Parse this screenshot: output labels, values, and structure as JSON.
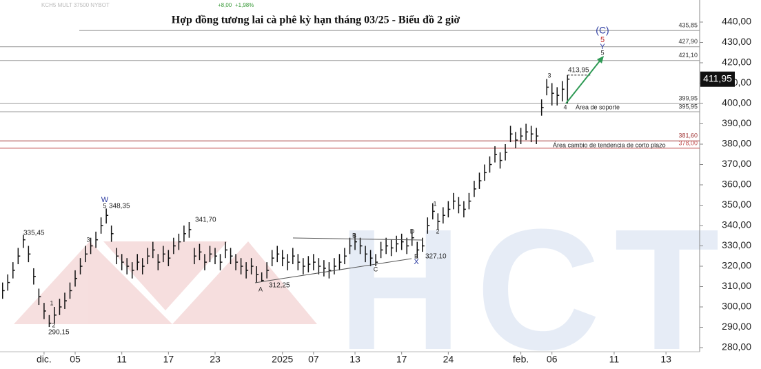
{
  "chart_data": {
    "type": "ohlc",
    "title": "Hợp đồng tương lai cà phê kỳ hạn tháng 03/25 - Biểu đồ 2 giờ",
    "header": [
      "KCH5 MULT 37500 NYBOT",
      "+8,00",
      "+1,98%"
    ],
    "watermark": "HCT",
    "color": "#111111",
    "categories": [
      null,
      null,
      null,
      null,
      null,
      null,
      null,
      null,
      "dic.",
      null,
      null,
      null,
      null,
      null,
      "05",
      null,
      null,
      null,
      null,
      null,
      null,
      null,
      null,
      "11",
      null,
      null,
      null,
      null,
      null,
      null,
      null,
      null,
      "17",
      null,
      null,
      null,
      null,
      null,
      null,
      null,
      null,
      "23",
      null,
      null,
      null,
      null,
      null,
      null,
      null,
      null,
      null,
      null,
      null,
      null,
      "2025",
      null,
      null,
      null,
      null,
      null,
      "07",
      null,
      null,
      null,
      null,
      null,
      null,
      null,
      "13",
      null,
      null,
      null,
      null,
      null,
      null,
      null,
      null,
      "17",
      null,
      null,
      null,
      null,
      null,
      null,
      null,
      null,
      "24",
      null,
      null,
      null,
      null,
      null,
      null,
      null,
      null,
      null,
      null,
      null,
      null,
      null,
      "feb.",
      null,
      null,
      null,
      null,
      null,
      "06",
      null,
      null,
      null,
      null,
      null,
      null,
      null,
      null,
      null,
      null,
      null,
      "11",
      null,
      null,
      null,
      null,
      null,
      null,
      null,
      null,
      null,
      "13",
      null,
      null,
      null,
      null,
      null,
      null
    ],
    "high": [
      312,
      316,
      322,
      329,
      335.45,
      330,
      319,
      309,
      302,
      296,
      300,
      304,
      307,
      312,
      318,
      324,
      330,
      334,
      337,
      344,
      348.35,
      340,
      329,
      326,
      324,
      322,
      326,
      324,
      329,
      332,
      326,
      330,
      328,
      334,
      336,
      340,
      341.7,
      329,
      331,
      326,
      330,
      329,
      326,
      332,
      329,
      326,
      324,
      322,
      324,
      320,
      317,
      322,
      328,
      330,
      328,
      326,
      329,
      326,
      324,
      325,
      326,
      324,
      323,
      322,
      324,
      326,
      329,
      334,
      336,
      334,
      330,
      328,
      326,
      332,
      334,
      333,
      335,
      336,
      334,
      338,
      332,
      334,
      344,
      351,
      346,
      349,
      352,
      356,
      354,
      352,
      356,
      362,
      366,
      370,
      374,
      379,
      376,
      380,
      389,
      386,
      388,
      390,
      389,
      388,
      402,
      412,
      410,
      408,
      411,
      413.95,
      null,
      null,
      null,
      null,
      null,
      null,
      null,
      null,
      null,
      null,
      null,
      null,
      null,
      null,
      null,
      null,
      null,
      null,
      null,
      null,
      null,
      null,
      null,
      null,
      null
    ],
    "low": [
      304,
      308,
      314,
      321,
      329,
      322,
      311,
      301,
      294,
      290.15,
      292,
      296,
      299,
      304,
      310,
      316,
      322,
      326,
      329,
      336,
      341,
      332,
      321,
      318,
      316,
      314,
      318,
      316,
      321,
      324,
      318,
      322,
      320,
      326,
      328,
      332,
      334,
      321,
      323,
      318,
      322,
      321,
      318,
      324,
      321,
      318,
      316,
      314,
      316,
      312,
      312.25,
      314,
      320,
      322,
      320,
      318,
      321,
      318,
      316,
      317,
      318,
      316,
      315,
      314,
      316,
      318,
      321,
      326,
      328,
      326,
      322,
      320,
      320,
      324,
      326,
      325,
      327,
      328,
      326,
      330,
      324,
      327.1,
      336,
      343,
      338,
      341,
      344,
      348,
      346,
      344,
      348,
      354,
      358,
      362,
      366,
      371,
      368,
      372,
      381,
      378,
      380,
      382,
      381,
      380,
      394,
      404,
      399,
      399,
      401,
      400,
      null,
      null,
      null,
      null,
      null,
      null,
      null,
      null,
      null,
      null,
      null,
      null,
      null,
      null,
      null,
      null,
      null,
      null,
      null,
      null,
      null,
      null,
      null,
      null,
      null
    ],
    "close": [
      308,
      312,
      318,
      325,
      333,
      326,
      315,
      305,
      298,
      292,
      296,
      300,
      303,
      308,
      314,
      320,
      326,
      330,
      333,
      340,
      345,
      336,
      325,
      322,
      320,
      318,
      322,
      320,
      325,
      328,
      322,
      326,
      324,
      330,
      332,
      336,
      338,
      325,
      327,
      322,
      326,
      325,
      322,
      328,
      325,
      322,
      320,
      318,
      320,
      316,
      313,
      318,
      324,
      326,
      324,
      322,
      325,
      322,
      320,
      321,
      322,
      320,
      319,
      318,
      320,
      322,
      325,
      330,
      332,
      330,
      326,
      324,
      322,
      328,
      330,
      329,
      331,
      332,
      330,
      334,
      328,
      330,
      340,
      347,
      342,
      345,
      348,
      352,
      350,
      348,
      352,
      358,
      362,
      366,
      370,
      375,
      372,
      376,
      385,
      382,
      384,
      386,
      385,
      384,
      398,
      408,
      405,
      404,
      407,
      411.95,
      null,
      null,
      null,
      null,
      null,
      null,
      null,
      null,
      null,
      null,
      null,
      null,
      null,
      null,
      null,
      null,
      null,
      null,
      null,
      null,
      null,
      null,
      null,
      null,
      null
    ],
    "last_price": {
      "value": 411.95,
      "label": "411,95"
    },
    "ylim": [
      277.97,
      450.85
    ],
    "yticks": [
      {
        "value": 280,
        "label": "280,00"
      },
      {
        "value": 290,
        "label": "290,00"
      },
      {
        "value": 300,
        "label": "300,00"
      },
      {
        "value": 310,
        "label": "310,00"
      },
      {
        "value": 320,
        "label": "320,00"
      },
      {
        "value": 330,
        "label": "330,00"
      },
      {
        "value": 340,
        "label": "340,00"
      },
      {
        "value": 350,
        "label": "350,00"
      },
      {
        "value": 360,
        "label": "360,00"
      },
      {
        "value": 370,
        "label": "370,00"
      },
      {
        "value": 380,
        "label": "380,00"
      },
      {
        "value": 390,
        "label": "390,00"
      },
      {
        "value": 400,
        "label": "400,00"
      },
      {
        "value": 410,
        "label": "410,00"
      },
      {
        "value": 420,
        "label": "420,00"
      },
      {
        "value": 430,
        "label": "430,00"
      },
      {
        "value": 440,
        "label": "440,00"
      }
    ],
    "levels": [
      {
        "value": 435.85,
        "label": "435,85",
        "color": "#9a9a9a"
      },
      {
        "value": 427.9,
        "label": "427,90",
        "color": "#9a9a9a"
      },
      {
        "value": 421.1,
        "label": "421,10",
        "color": "#9a9a9a"
      },
      {
        "value": 399.95,
        "label": "399,95",
        "color": "#9a9a9a"
      },
      {
        "value": 395.95,
        "label": "395,95",
        "color": "#9a9a9a"
      },
      {
        "value": 381.6,
        "label": "381,60",
        "color": "#a33a3a"
      },
      {
        "value": 378.0,
        "label": "378,00",
        "color": "#c05050"
      }
    ],
    "area_labels": [
      "Área de soporte",
      "Área cambio de tendencia de corto plazo"
    ],
    "price_labels": [
      "335,45",
      "290,15",
      "348,35",
      "341,70",
      "312,25",
      "327,10",
      "413,95"
    ],
    "wave_labels": [
      "1",
      "2",
      "3",
      "W",
      "5",
      "A",
      "B",
      "C",
      "D",
      "E",
      "X",
      "1",
      "2",
      "3",
      "4",
      "5",
      "Y",
      "5",
      "(C)"
    ]
  }
}
